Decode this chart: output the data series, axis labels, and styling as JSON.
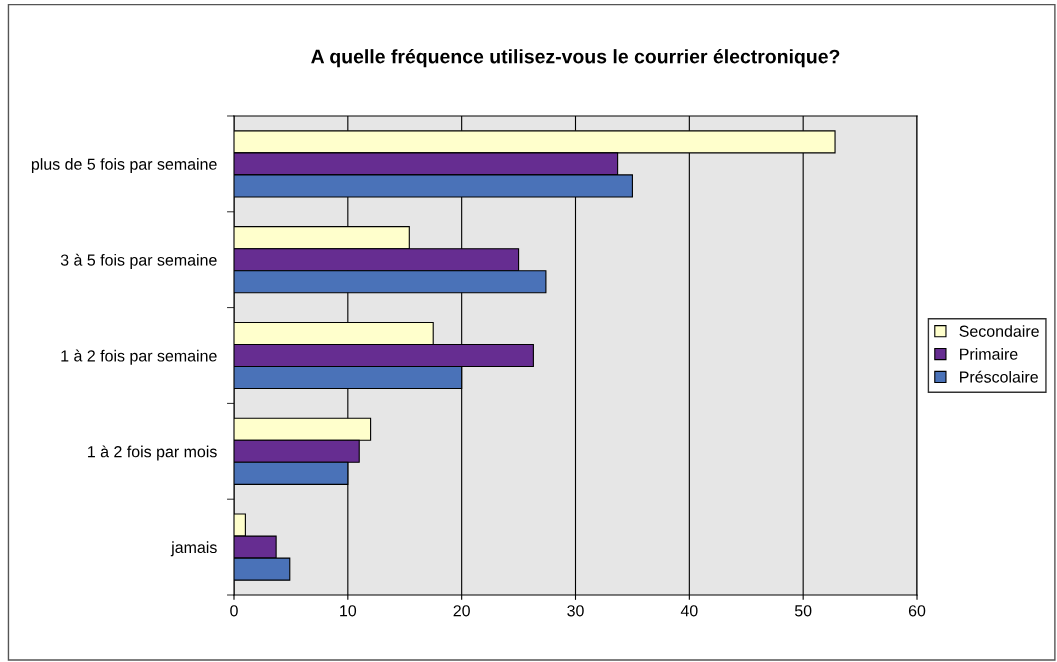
{
  "chart_data": {
    "type": "bar",
    "orientation": "horizontal",
    "title": "A quelle fréquence utilisez-vous le courrier électronique?",
    "categories": [
      "plus de 5 fois par semaine",
      "3 à 5 fois par semaine",
      "1 à 2 fois par semaine",
      "1 à 2 fois par mois",
      "jamais"
    ],
    "series": [
      {
        "name": "Secondaire",
        "color": "#ffffcc",
        "values": [
          52.8,
          15.4,
          17.5,
          12,
          1
        ]
      },
      {
        "name": "Primaire",
        "color": "#662d91",
        "values": [
          33.7,
          25,
          26.3,
          11,
          3.7
        ]
      },
      {
        "name": "Préscolaire",
        "color": "#4a72b8",
        "values": [
          35,
          27.4,
          20,
          10,
          4.9
        ]
      }
    ],
    "xlim": [
      0,
      60
    ],
    "xticks": [
      0,
      10,
      20,
      30,
      40,
      50,
      60
    ],
    "grid": "x",
    "legend": "right"
  }
}
